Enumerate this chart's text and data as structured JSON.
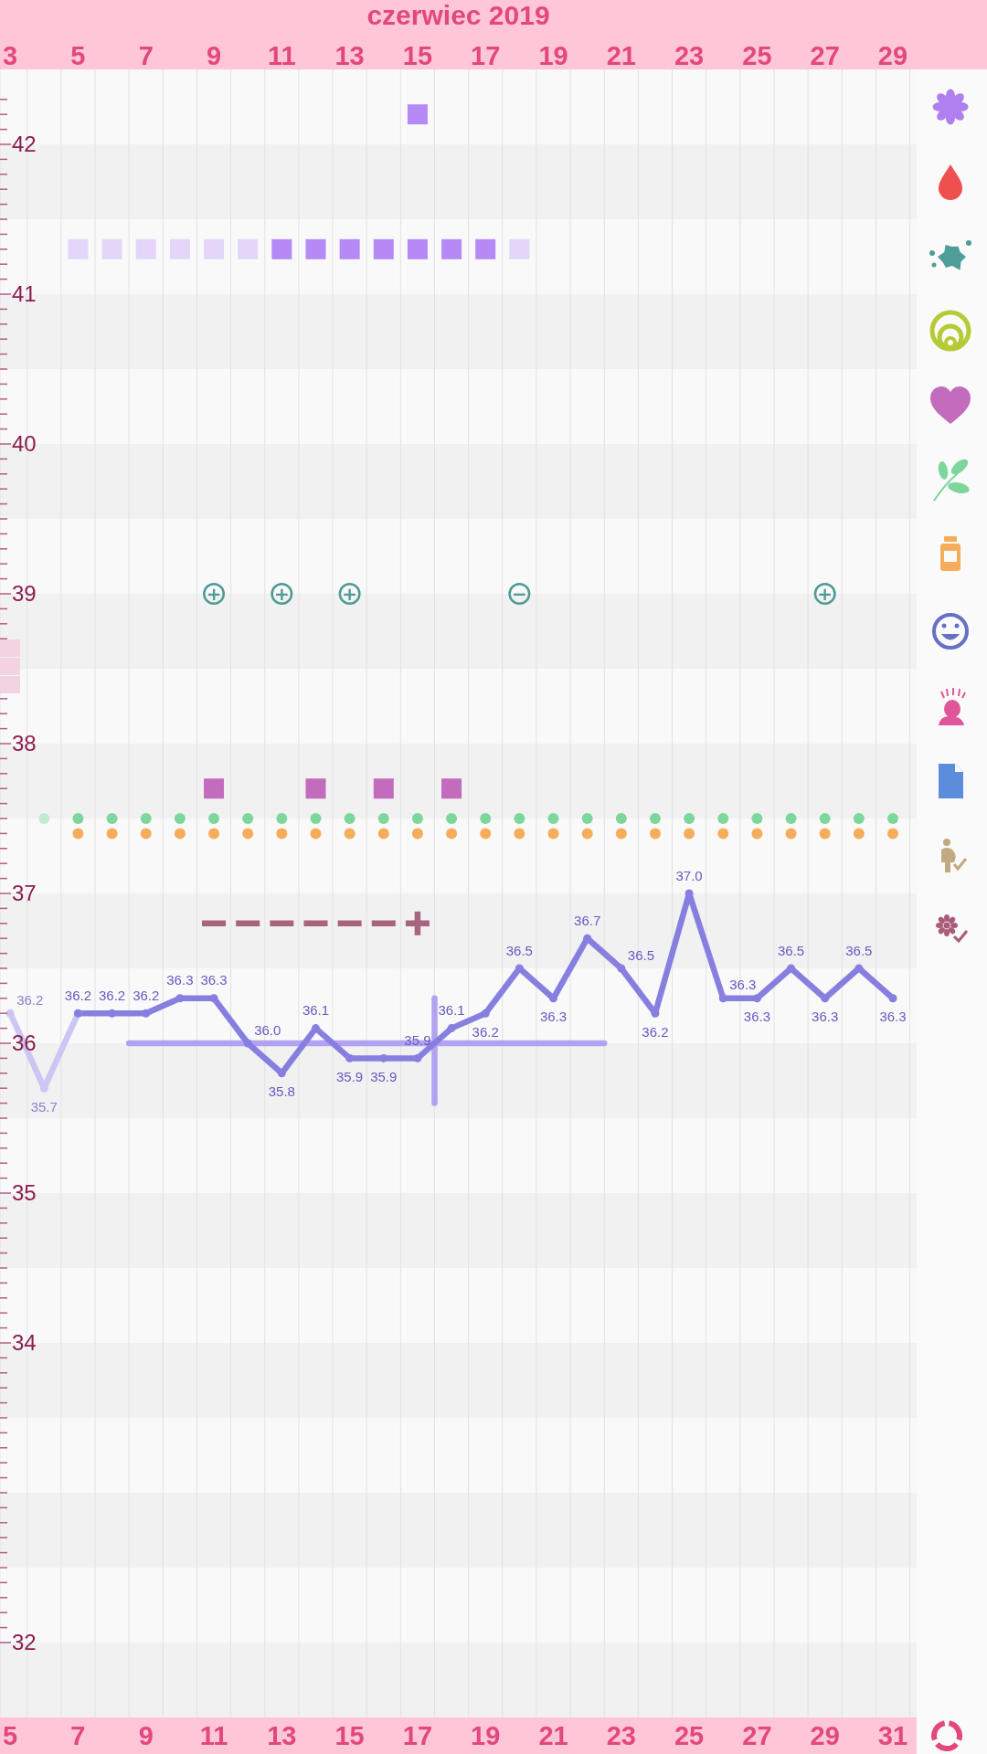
{
  "chart_data": {
    "type": "line",
    "x2label": "czerwiec 2019",
    "xlim": [
      4.7,
      31.7
    ],
    "xticks": [
      5,
      7,
      9,
      11,
      13,
      15,
      17,
      19,
      21,
      23,
      25,
      27,
      29,
      31
    ],
    "x2lim": [
      2.7,
      29.7
    ],
    "x2ticks": [
      3,
      5,
      7,
      9,
      11,
      13,
      15,
      17,
      19,
      21,
      23,
      25,
      27,
      29
    ],
    "ylim": [
      31.5,
      42.5
    ],
    "yticks": [
      32,
      {
        "value": 32.1,
        "label": null
      },
      {
        "value": 32.2,
        "label": null
      },
      {
        "value": 32.3,
        "label": null
      },
      {
        "value": 32.4,
        "label": null
      },
      {
        "value": 32.5,
        "label": null
      },
      {
        "value": 32.6,
        "label": null
      },
      {
        "value": 32.7,
        "label": null
      },
      {
        "value": 32.8,
        "label": null
      },
      {
        "value": 32.9,
        "label": null
      },
      {
        "value": 33,
        "label": null
      },
      {
        "value": 33.1,
        "label": null
      },
      {
        "value": 33.2,
        "label": null
      },
      {
        "value": 33.3,
        "label": null
      },
      {
        "value": 33.4,
        "label": null
      },
      {
        "value": 33.5,
        "label": null
      },
      {
        "value": 33.6,
        "label": null
      },
      {
        "value": 33.7,
        "label": null
      },
      {
        "value": 33.8,
        "label": null
      },
      {
        "value": 33.9,
        "label": null
      },
      34,
      {
        "value": 34.1,
        "label": null
      },
      {
        "value": 34.2,
        "label": null
      },
      {
        "value": 34.3,
        "label": null
      },
      {
        "value": 34.4,
        "label": null
      },
      {
        "value": 34.5,
        "label": null
      },
      {
        "value": 34.6,
        "label": null
      },
      {
        "value": 34.7,
        "label": null
      },
      {
        "value": 34.8,
        "label": null
      },
      {
        "value": 34.9,
        "label": null
      },
      35,
      {
        "value": 35.1,
        "label": null
      },
      {
        "value": 35.2,
        "label": null
      },
      {
        "value": 35.3,
        "label": null
      },
      {
        "value": 35.4,
        "label": null
      },
      {
        "value": 35.5,
        "label": null
      },
      {
        "value": 35.6,
        "label": null
      },
      {
        "value": 35.7,
        "label": null
      },
      {
        "value": 35.8,
        "label": null
      },
      {
        "value": 35.9,
        "label": null
      },
      36,
      {
        "value": 36.1,
        "label": null
      },
      {
        "value": 36.2,
        "label": null
      },
      {
        "value": 36.3,
        "label": null
      },
      {
        "value": 36.4,
        "label": null
      },
      {
        "value": 36.5,
        "label": null
      },
      {
        "value": 36.6,
        "label": null
      },
      {
        "value": 36.7,
        "label": null
      },
      {
        "value": 36.8,
        "label": null
      },
      {
        "value": 36.9,
        "label": null
      },
      37,
      {
        "value": 37.1,
        "label": null
      },
      {
        "value": 37.2,
        "label": null
      },
      {
        "value": 37.3,
        "label": null
      },
      {
        "value": 37.4,
        "label": null
      },
      {
        "value": 37.5,
        "label": null
      },
      {
        "value": 37.6,
        "label": null
      },
      {
        "value": 37.7,
        "label": null
      },
      {
        "value": 37.8,
        "label": null
      },
      {
        "value": 37.9,
        "label": null
      },
      38,
      {
        "value": 38.1,
        "label": null
      },
      {
        "value": 38.2,
        "label": null
      },
      {
        "value": 38.3,
        "label": null
      },
      {
        "value": 38.4,
        "label": null
      },
      {
        "value": 38.5,
        "label": null
      },
      {
        "value": 38.6,
        "label": null
      },
      {
        "value": 38.7,
        "label": null
      },
      {
        "value": 38.8,
        "label": null
      },
      {
        "value": 38.9,
        "label": null
      },
      39,
      {
        "value": 39.1,
        "label": null
      },
      {
        "value": 39.2,
        "label": null
      },
      {
        "value": 39.3,
        "label": null
      },
      {
        "value": 39.4,
        "label": null
      },
      {
        "value": 39.5,
        "label": null
      },
      {
        "value": 39.6,
        "label": null
      },
      {
        "value": 39.7,
        "label": null
      },
      {
        "value": 39.8,
        "label": null
      },
      {
        "value": 39.9,
        "label": null
      },
      40,
      {
        "value": 40.1,
        "label": null
      },
      {
        "value": 40.2,
        "label": null
      },
      {
        "value": 40.3,
        "label": null
      },
      {
        "value": 40.4,
        "label": null
      },
      {
        "value": 40.5,
        "label": null
      },
      {
        "value": 40.6,
        "label": null
      },
      {
        "value": 40.7,
        "label": null
      },
      {
        "value": 40.8,
        "label": null
      },
      {
        "value": 40.9,
        "label": null
      },
      41,
      {
        "value": 41.1,
        "label": null
      },
      {
        "value": 41.2,
        "label": null
      },
      {
        "value": 41.3,
        "label": null
      },
      {
        "value": 41.4,
        "label": null
      },
      {
        "value": 41.5,
        "label": null
      },
      {
        "value": 41.6,
        "label": null
      },
      {
        "value": 41.7,
        "label": null
      },
      {
        "value": 41.8,
        "label": null
      },
      {
        "value": 41.9,
        "label": null
      },
      42,
      {
        "value": 42.1,
        "label": null
      },
      {
        "value": 42.2,
        "label": null
      },
      {
        "value": 42.3,
        "label": null
      }
    ],
    "grid": "x",
    "marker": "circle",
    "series": [
      {
        "type": "line",
        "color": "#b3a1f1",
        "marker": "none",
        "x": [
          8.5,
          22.5
        ],
        "values": [
          36.0,
          36.0
        ]
      },
      {
        "type": "line",
        "color": "#b3a1f1",
        "marker": "none",
        "x": [
          17.5,
          17.5
        ],
        "values": [
          36.3,
          35.6
        ]
      },
      {
        "type": "line",
        "color": "#cbc6f3",
        "x": [
          5,
          6,
          7
        ],
        "values": [
          36.2,
          35.7,
          36.2
        ],
        "value_labels": [
          "36.2",
          "35.7",
          null
        ]
      },
      {
        "type": "line",
        "color": "#877fe0",
        "x": [
          7,
          8,
          9,
          10,
          11,
          12,
          13,
          14,
          15,
          16,
          17,
          18,
          19,
          20,
          21,
          22,
          23,
          24,
          25,
          26,
          27,
          28,
          29,
          30,
          31
        ],
        "values": [
          36.2,
          36.2,
          36.2,
          36.3,
          36.3,
          36.0,
          35.8,
          36.1,
          35.9,
          35.9,
          35.9,
          36.1,
          36.2,
          36.5,
          36.3,
          36.7,
          36.5,
          36.2,
          37.0,
          36.3,
          36.3,
          36.5,
          36.3,
          36.5,
          36.3
        ],
        "value_labels": [
          "36.2",
          "36.2",
          "36.2",
          "36.3",
          "36.3",
          "36.0",
          "35.8",
          "36.1",
          "35.9",
          "35.9",
          "35.9",
          "36.1",
          "36.2",
          "36.5",
          "36.3",
          "36.7",
          "36.5",
          "36.2",
          "37.0",
          "36.3",
          "36.3",
          "36.5",
          "36.3",
          "36.5",
          "36.3"
        ]
      },
      {
        "type": "scatter",
        "color": "#e3d6f9",
        "marker": "square",
        "x": [
          7,
          8,
          9,
          10,
          11,
          12,
          20
        ],
        "values": [
          41.3,
          41.3,
          41.3,
          41.3,
          41.3,
          41.3,
          41.3
        ]
      },
      {
        "type": "scatter",
        "color": "#b68af6",
        "marker": "square",
        "x": [
          13,
          14,
          15,
          16,
          17,
          17,
          18,
          19
        ],
        "values": [
          41.3,
          41.3,
          41.3,
          41.3,
          41.3,
          42.2,
          41.3,
          41.3
        ]
      },
      {
        "type": "scatter",
        "color": "#4e9a96",
        "marker": "circle",
        "x": [
          11,
          13,
          15,
          20,
          29
        ],
        "values": [
          39.0,
          39.0,
          39.0,
          39.0,
          39.0
        ],
        "value_labels": [
          "+",
          "+",
          "+",
          "−",
          "+"
        ]
      },
      {
        "type": "scatter",
        "color": "#c36bbd",
        "marker": "square",
        "x": [
          11,
          14,
          16,
          18
        ],
        "values": [
          37.7,
          37.7,
          37.7,
          37.7
        ]
      },
      {
        "type": "scatter",
        "colors": [
          "#c3ebd2",
          "#7dd69b",
          "#7dd69b",
          "#7dd69b",
          "#7dd69b",
          "#7dd69b",
          "#7dd69b",
          "#7dd69b",
          "#7dd69b",
          "#7dd69b",
          "#7dd69b",
          "#7dd69b",
          "#7dd69b",
          "#7dd69b",
          "#7dd69b",
          "#7dd69b",
          "#7dd69b",
          "#7dd69b",
          "#7dd69b",
          "#7dd69b",
          "#7dd69b",
          "#7dd69b",
          "#7dd69b",
          "#7dd69b",
          "#7dd69b",
          "#7dd69b"
        ],
        "marker": "circle",
        "x": [
          6,
          7,
          8,
          9,
          10,
          11,
          12,
          13,
          14,
          15,
          16,
          17,
          18,
          19,
          20,
          21,
          22,
          23,
          24,
          25,
          26,
          27,
          28,
          29,
          30,
          31
        ],
        "values": [
          37.5,
          37.5,
          37.5,
          37.5,
          37.5,
          37.5,
          37.5,
          37.5,
          37.5,
          37.5,
          37.5,
          37.5,
          37.5,
          37.5,
          37.5,
          37.5,
          37.5,
          37.5,
          37.5,
          37.5,
          37.5,
          37.5,
          37.5,
          37.5,
          37.5,
          37.5
        ]
      },
      {
        "type": "scatter",
        "color": "#f5ad5b",
        "marker": "circle",
        "x": [
          7,
          8,
          9,
          10,
          11,
          12,
          13,
          14,
          15,
          16,
          17,
          18,
          19,
          20,
          21,
          22,
          23,
          24,
          25,
          26,
          27,
          28,
          29,
          30,
          31
        ],
        "values": [
          37.4,
          37.4,
          37.4,
          37.4,
          37.4,
          37.4,
          37.4,
          37.4,
          37.4,
          37.4,
          37.4,
          37.4,
          37.4,
          37.4,
          37.4,
          37.4,
          37.4,
          37.4,
          37.4,
          37.4,
          37.4,
          37.4,
          37.4,
          37.4,
          37.4
        ]
      },
      {
        "type": "line",
        "color": "#a8637f",
        "marker": "none",
        "line_style": "dashed",
        "x": [
          10.65,
          16.35
        ],
        "values": [
          36.8,
          36.8
        ]
      },
      {
        "type": "scatter",
        "color": "#a8637f",
        "marker": "cross",
        "x": [
          17
        ],
        "values": [
          36.8
        ]
      }
    ]
  }
}
